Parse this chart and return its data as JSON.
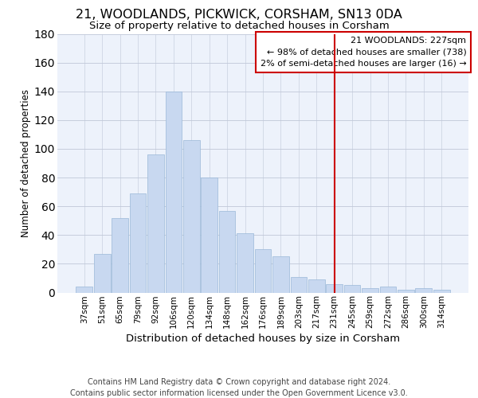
{
  "title": "21, WOODLANDS, PICKWICK, CORSHAM, SN13 0DA",
  "subtitle": "Size of property relative to detached houses in Corsham",
  "xlabel": "Distribution of detached houses by size in Corsham",
  "ylabel": "Number of detached properties",
  "bar_labels": [
    "37sqm",
    "51sqm",
    "65sqm",
    "79sqm",
    "92sqm",
    "106sqm",
    "120sqm",
    "134sqm",
    "148sqm",
    "162sqm",
    "176sqm",
    "189sqm",
    "203sqm",
    "217sqm",
    "231sqm",
    "245sqm",
    "259sqm",
    "272sqm",
    "286sqm",
    "300sqm",
    "314sqm"
  ],
  "bar_values": [
    4,
    27,
    52,
    69,
    96,
    140,
    106,
    80,
    57,
    41,
    30,
    25,
    11,
    9,
    6,
    5,
    3,
    4,
    2,
    3,
    2
  ],
  "bar_color": "#c8d8f0",
  "bar_edgecolor": "#9ab8d8",
  "background_color": "#edf2fb",
  "grid_color": "#c0c8d8",
  "vline_color": "#cc0000",
  "annotation_title": "21 WOODLANDS: 227sqm",
  "annotation_line1": "← 98% of detached houses are smaller (738)",
  "annotation_line2": "2% of semi-detached houses are larger (16) →",
  "annotation_box_edgecolor": "#cc0000",
  "footer_line1": "Contains HM Land Registry data © Crown copyright and database right 2024.",
  "footer_line2": "Contains public sector information licensed under the Open Government Licence v3.0.",
  "ylim": [
    0,
    180
  ],
  "yticks": [
    0,
    20,
    40,
    60,
    80,
    100,
    120,
    140,
    160,
    180
  ],
  "title_fontsize": 11.5,
  "subtitle_fontsize": 9.5,
  "xlabel_fontsize": 9.5,
  "ylabel_fontsize": 8.5,
  "tick_fontsize": 7.5,
  "ann_fontsize": 8.0,
  "footer_fontsize": 7.0
}
